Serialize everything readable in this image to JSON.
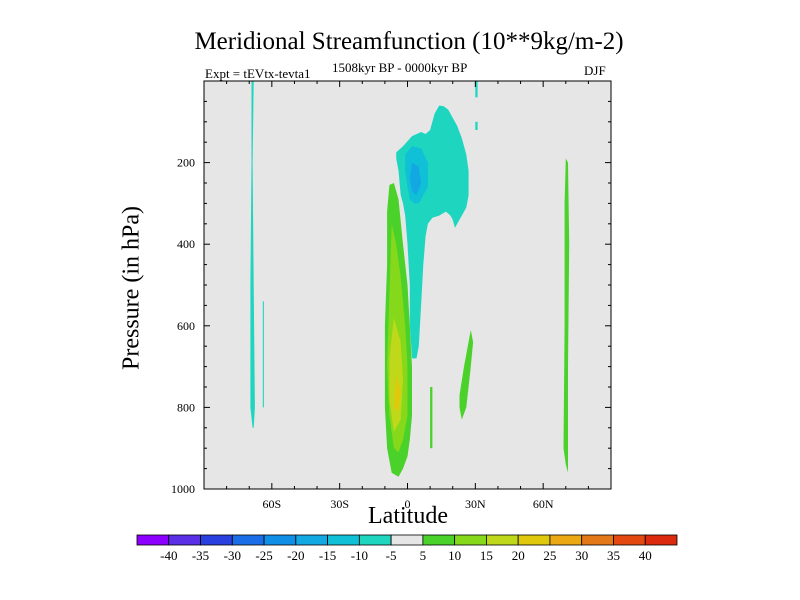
{
  "chart_data": {
    "type": "heatmap",
    "title": "Meridional Streamfunction (10**9kg/m-2)",
    "experiment_label": "Expt = tEVtx-tevta1",
    "period_label": "1508kyr BP - 0000kyr BP",
    "season_label": "DJF",
    "xlabel": "Latitude",
    "ylabel": "Pressure (in hPa)",
    "xlim": [
      -90,
      90
    ],
    "ylim": [
      1000,
      0
    ],
    "x_ticks": [
      {
        "value": -60,
        "label": "60S"
      },
      {
        "value": -30,
        "label": "30S"
      },
      {
        "value": 0,
        "label": "0"
      },
      {
        "value": 30,
        "label": "30N"
      },
      {
        "value": 60,
        "label": "60N"
      }
    ],
    "y_ticks": [
      {
        "value": 200,
        "label": "200"
      },
      {
        "value": 400,
        "label": "400"
      },
      {
        "value": 600,
        "label": "600"
      },
      {
        "value": 800,
        "label": "800"
      },
      {
        "value": 1000,
        "label": "1000"
      }
    ],
    "background_color": "#e6e6e6",
    "colorbar": {
      "labels": [
        "-40",
        "-35",
        "-30",
        "-25",
        "-20",
        "-15",
        "-10",
        "-5",
        "5",
        "10",
        "15",
        "20",
        "25",
        "30",
        "35",
        "40"
      ],
      "colors": [
        "#8b00ff",
        "#5a2fe6",
        "#2a3fe0",
        "#1a6de6",
        "#0f8fe6",
        "#12a8e2",
        "#10c0d6",
        "#1ed6c0",
        "#e6e6e6",
        "#4ad12a",
        "#86d81a",
        "#c0d81a",
        "#e0c80c",
        "#eba812",
        "#e37818",
        "#e24810",
        "#dc2a0e"
      ]
    },
    "regions": [
      {
        "name": "sh-high-lat-negative-band",
        "value": -5,
        "points": [
          [
            -69,
            0
          ],
          [
            -68,
            0
          ],
          [
            -68.5,
            200
          ],
          [
            -68,
            500
          ],
          [
            -67.5,
            800
          ],
          [
            -68,
            850
          ],
          [
            -68.5,
            850
          ],
          [
            -69.5,
            800
          ],
          [
            -69.5,
            500
          ],
          [
            -69,
            200
          ]
        ]
      },
      {
        "name": "sh-high-lat-negative-sliver",
        "value": -5,
        "points": [
          [
            -64,
            540
          ],
          [
            -63.5,
            540
          ],
          [
            -63.5,
            800
          ],
          [
            -64,
            800
          ]
        ]
      },
      {
        "name": "upper-trop-negative-cell",
        "value": -5,
        "points": [
          [
            -5,
            175
          ],
          [
            -2,
            160
          ],
          [
            2,
            135
          ],
          [
            6,
            125
          ],
          [
            8,
            130
          ],
          [
            10,
            120
          ],
          [
            12,
            80
          ],
          [
            14,
            60
          ],
          [
            16,
            62
          ],
          [
            18,
            70
          ],
          [
            20,
            90
          ],
          [
            22,
            110
          ],
          [
            24,
            140
          ],
          [
            26,
            180
          ],
          [
            27,
            220
          ],
          [
            27,
            280
          ],
          [
            26,
            310
          ],
          [
            24,
            330
          ],
          [
            22,
            350
          ],
          [
            21,
            360
          ],
          [
            20,
            340
          ],
          [
            19,
            330
          ],
          [
            17,
            320
          ],
          [
            14,
            330
          ],
          [
            11,
            335
          ],
          [
            9,
            350
          ],
          [
            8,
            380
          ],
          [
            7,
            450
          ],
          [
            6,
            550
          ],
          [
            5,
            650
          ],
          [
            4,
            680
          ],
          [
            2,
            680
          ],
          [
            1,
            600
          ],
          [
            1,
            500
          ],
          [
            0,
            400
          ],
          [
            -1,
            330
          ],
          [
            -2,
            300
          ],
          [
            -3,
            280
          ],
          [
            -4,
            220
          ],
          [
            -5,
            190
          ]
        ]
      },
      {
        "name": "upper-trop-negative-core",
        "value": -10,
        "points": [
          [
            -1,
            180
          ],
          [
            2,
            160
          ],
          [
            6,
            165
          ],
          [
            9,
            200
          ],
          [
            9,
            260
          ],
          [
            7,
            280
          ],
          [
            5,
            300
          ],
          [
            3,
            300
          ],
          [
            1,
            290
          ],
          [
            0,
            260
          ],
          [
            -1,
            220
          ]
        ]
      },
      {
        "name": "upper-trop-negative-center",
        "value": -15,
        "points": [
          [
            2,
            200
          ],
          [
            5,
            210
          ],
          [
            6,
            250
          ],
          [
            4,
            280
          ],
          [
            2,
            270
          ],
          [
            1,
            240
          ]
        ]
      },
      {
        "name": "nh-high-lat-negative-tick",
        "value": -5,
        "points": [
          [
            30,
            0
          ],
          [
            31,
            0
          ],
          [
            31,
            40
          ],
          [
            30,
            40
          ]
        ]
      },
      {
        "name": "nh-high-lat-negative-dot",
        "value": -5,
        "points": [
          [
            30,
            100
          ],
          [
            31,
            100
          ],
          [
            31,
            120
          ],
          [
            30,
            120
          ]
        ]
      },
      {
        "name": "tropical-positive-cell",
        "value": 5,
        "points": [
          [
            -8,
            255
          ],
          [
            -6,
            250
          ],
          [
            -4,
            290
          ],
          [
            -2,
            400
          ],
          [
            0,
            500
          ],
          [
            1,
            600
          ],
          [
            2,
            700
          ],
          [
            2,
            820
          ],
          [
            1,
            880
          ],
          [
            0,
            920
          ],
          [
            -2,
            950
          ],
          [
            -4,
            970
          ],
          [
            -7,
            960
          ],
          [
            -9,
            900
          ],
          [
            -10,
            800
          ],
          [
            -10,
            600
          ],
          [
            -9,
            450
          ],
          [
            -9,
            320
          ]
        ]
      },
      {
        "name": "tropical-positive-inner",
        "value": 10,
        "points": [
          [
            -7,
            350
          ],
          [
            -5,
            400
          ],
          [
            -3,
            480
          ],
          [
            -1,
            600
          ],
          [
            0,
            700
          ],
          [
            0,
            820
          ],
          [
            -2,
            880
          ],
          [
            -4,
            910
          ],
          [
            -6,
            900
          ],
          [
            -8,
            820
          ],
          [
            -9,
            700
          ],
          [
            -8,
            520
          ]
        ]
      },
      {
        "name": "tropical-positive-core",
        "value": 15,
        "points": [
          [
            -6,
            580
          ],
          [
            -3,
            640
          ],
          [
            -2,
            730
          ],
          [
            -3,
            830
          ],
          [
            -6,
            860
          ],
          [
            -8,
            780
          ],
          [
            -8,
            680
          ]
        ]
      },
      {
        "name": "tropical-positive-center",
        "value": 20,
        "points": [
          [
            -5,
            720
          ],
          [
            -3,
            760
          ],
          [
            -4,
            810
          ],
          [
            -6,
            800
          ]
        ]
      },
      {
        "name": "equatorial-positive-sliver",
        "value": 5,
        "points": [
          [
            10,
            750
          ],
          [
            11,
            750
          ],
          [
            11,
            900
          ],
          [
            10,
            900
          ]
        ]
      },
      {
        "name": "nh-subtropical-positive-patch",
        "value": 5,
        "points": [
          [
            28,
            610
          ],
          [
            29,
            640
          ],
          [
            28,
            700
          ],
          [
            26,
            800
          ],
          [
            24,
            830
          ],
          [
            23,
            800
          ],
          [
            23,
            770
          ],
          [
            25,
            700
          ]
        ]
      },
      {
        "name": "nh-high-lat-positive-band",
        "value": 5,
        "points": [
          [
            70,
            190
          ],
          [
            71,
            200
          ],
          [
            71.5,
            400
          ],
          [
            71,
            700
          ],
          [
            71,
            900
          ],
          [
            71,
            960
          ],
          [
            70,
            940
          ],
          [
            69,
            900
          ],
          [
            69.5,
            600
          ],
          [
            69.5,
            300
          ]
        ]
      }
    ]
  }
}
